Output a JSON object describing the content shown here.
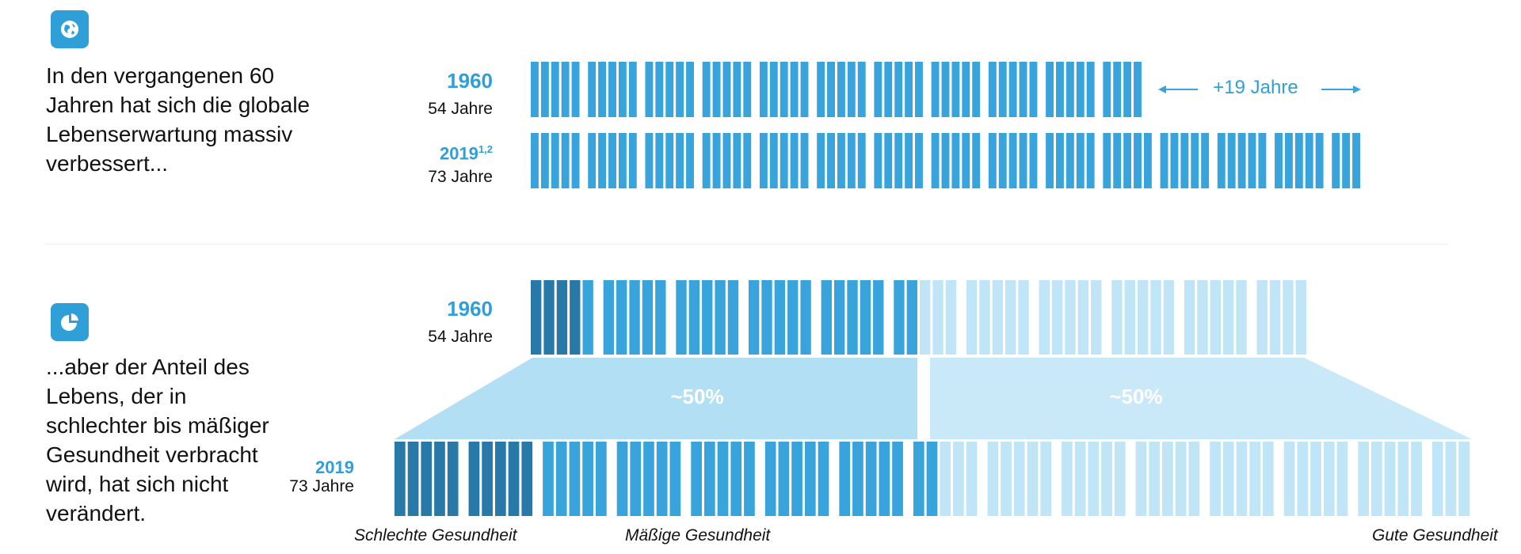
{
  "colors": {
    "primary": "#39a3dc",
    "dark": "#2879a8",
    "light": "#bfe5f7",
    "trapezoid_left": "#b3dff4",
    "trapezoid_right": "#c9e9f9",
    "icon_bg": "#2f9fd8"
  },
  "icons": {
    "top": "globe-icon",
    "bottom": "pie-chart-icon"
  },
  "section1": {
    "text": "In den vergangenen 60\nJahren hat sich die globale\nLebenserwartung massiv\nverbessert...",
    "row1960": {
      "year": "1960",
      "age": "54 Jahre"
    },
    "row2019": {
      "year": "2019",
      "superscript": "1,2",
      "age": "73 Jahre"
    },
    "gain_label": "+19 Jahre"
  },
  "section2": {
    "text": "...aber der Anteil des\nLebens, der in\nschlechter bis mäßiger\nGesundheit verbracht\nwird, hat sich nicht\nverändert.",
    "row1960": {
      "year": "1960",
      "age": "54 Jahre"
    },
    "row2019": {
      "year": "2019",
      "age": "73 Jahre"
    },
    "left_share": "~50%",
    "right_share": "~50%",
    "legend": {
      "poor": "Schlechte Gesundheit",
      "moderate": "Mäßige Gesundheit",
      "good": "Gute Gesundheit"
    }
  },
  "chart_data": {
    "type": "bar",
    "series": [
      {
        "name": "Lebenserwartung 1960",
        "values": [
          54
        ]
      },
      {
        "name": "Lebenserwartung 2019",
        "values": [
          73
        ]
      }
    ],
    "health_split_1960": {
      "schlecht_bis_maessig": 0.5,
      "gut": 0.5
    },
    "health_split_2019": {
      "schlecht_bis_maessig": 0.5,
      "gut": 0.5
    }
  }
}
